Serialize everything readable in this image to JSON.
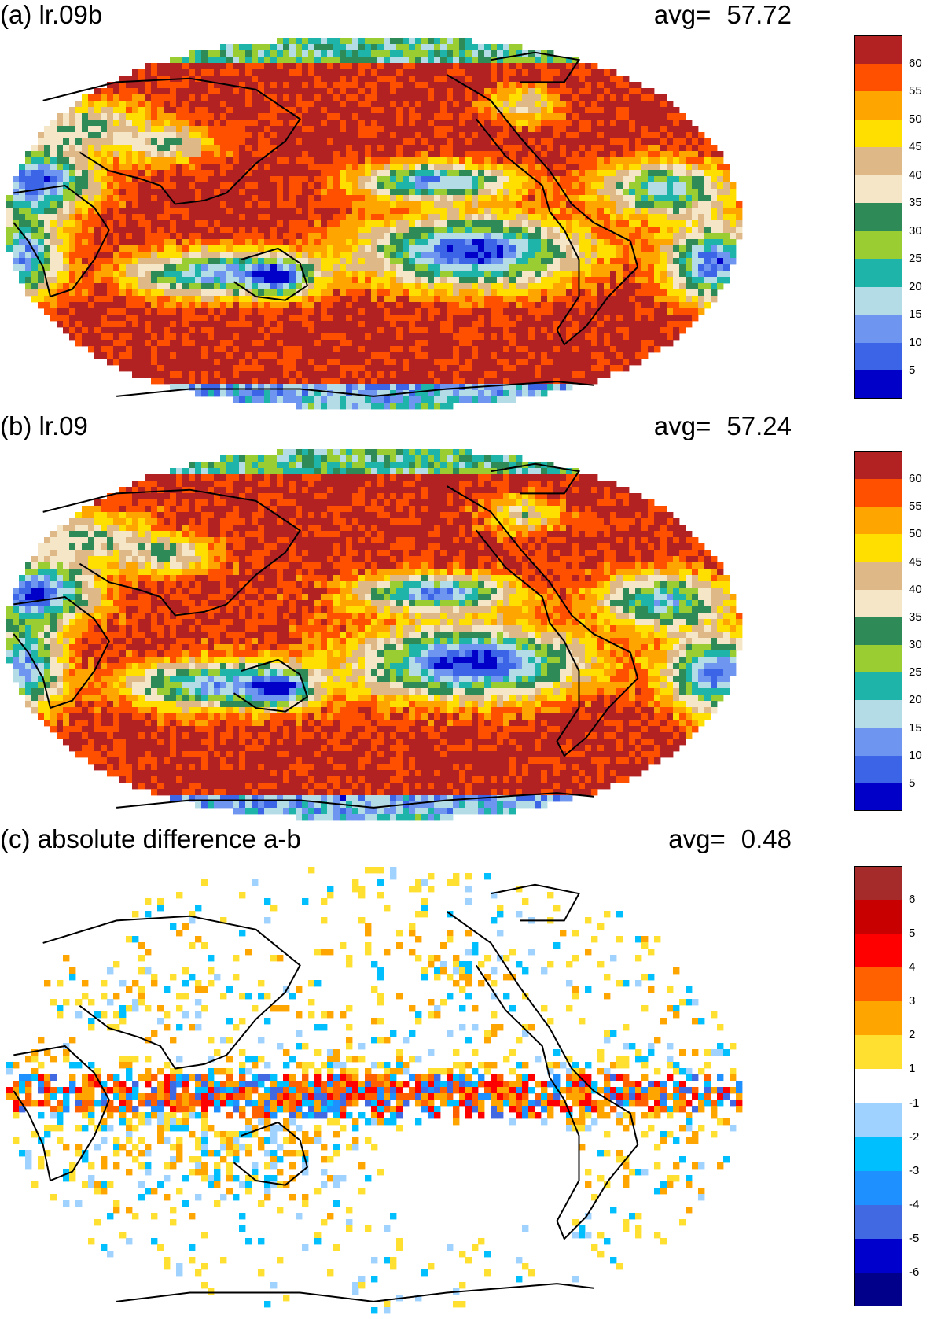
{
  "panels": [
    {
      "id": "a",
      "title": "(a) lr.09b",
      "avg_label": "avg=",
      "avg_value": "57.72",
      "field": "base_a",
      "colorbar": {
        "colors": [
          "#0000c8",
          "#3c64e6",
          "#6e96f0",
          "#b4dce6",
          "#1eb4aa",
          "#9acd32",
          "#2e8b57",
          "#f5e6c8",
          "#deb887",
          "#ffdf00",
          "#ffa500",
          "#ff5000",
          "#b22222"
        ],
        "ticks": [
          "5",
          "10",
          "15",
          "20",
          "25",
          "30",
          "35",
          "40",
          "45",
          "50",
          "55",
          "60"
        ]
      }
    },
    {
      "id": "b",
      "title": "(b) lr.09",
      "avg_label": "avg=",
      "avg_value": "57.24",
      "field": "base_b",
      "colorbar": {
        "colors": [
          "#0000c8",
          "#3c64e6",
          "#6e96f0",
          "#b4dce6",
          "#1eb4aa",
          "#9acd32",
          "#2e8b57",
          "#f5e6c8",
          "#deb887",
          "#ffdf00",
          "#ffa500",
          "#ff5000",
          "#b22222"
        ],
        "ticks": [
          "5",
          "10",
          "15",
          "20",
          "25",
          "30",
          "35",
          "40",
          "45",
          "50",
          "55",
          "60"
        ]
      }
    },
    {
      "id": "c",
      "title": "(c) absolute difference a-b",
      "avg_label": "avg=",
      "avg_value": "0.48",
      "field": "diff",
      "colorbar": {
        "colors": [
          "#00008b",
          "#0000cd",
          "#4169e1",
          "#1e90ff",
          "#00bfff",
          "#a0d2ff",
          "#ffffff",
          "#ffe030",
          "#ffa500",
          "#ff6000",
          "#ff0000",
          "#c80000",
          "#a52a2a"
        ],
        "ticks": [
          "-6",
          "-5",
          "-4",
          "-3",
          "-2",
          "-1",
          "1",
          "2",
          "3",
          "4",
          "5",
          "6"
        ]
      }
    }
  ]
}
